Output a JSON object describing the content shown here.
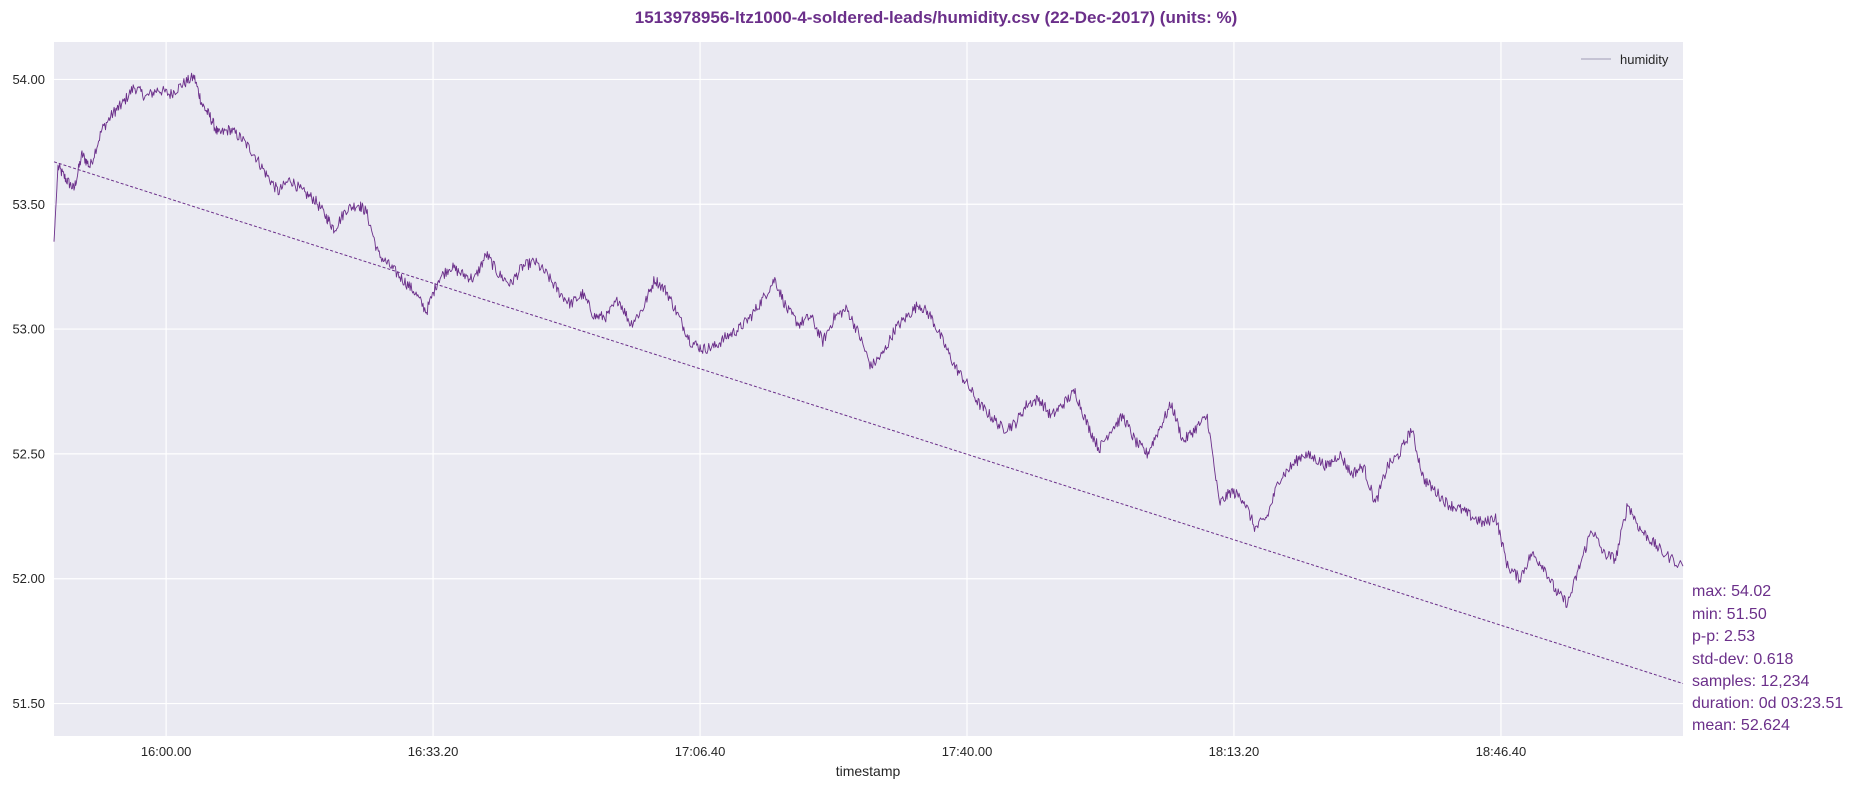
{
  "chart_data": {
    "type": "line",
    "title": "1513978956-ltz1000-4-soldered-leads/humidity.csv (22-Dec-2017) (units: %)",
    "xlabel": "timestamp",
    "ylabel": "",
    "x_start": "15:46:00",
    "x_end": "19:09:23",
    "x_ticks": [
      "16:00.00",
      "16:33.20",
      "17:06.40",
      "17:40.00",
      "18:13.20",
      "18:46.40"
    ],
    "x_tick_minutes": [
      14,
      47.33,
      80.67,
      114,
      147.33,
      180.67
    ],
    "x_range_minutes": [
      0,
      203.4
    ],
    "ylim": [
      51.37,
      54.15
    ],
    "y_ticks": [
      51.5,
      52.0,
      52.5,
      53.0,
      53.5,
      54.0
    ],
    "y_tick_labels": [
      "51.50",
      "52.00",
      "52.50",
      "53.00",
      "53.50",
      "54.00"
    ],
    "grid": true,
    "legend": {
      "position": "top-right",
      "entries": [
        "humidity"
      ]
    },
    "series": [
      {
        "name": "humidity",
        "color": "#6b2f8a",
        "points": [
          [
            0,
            53.35
          ],
          [
            0.5,
            53.65
          ],
          [
            1.5,
            53.6
          ],
          [
            2.5,
            53.56
          ],
          [
            3.5,
            53.7
          ],
          [
            4.5,
            53.65
          ],
          [
            6,
            53.8
          ],
          [
            7.5,
            53.87
          ],
          [
            8.5,
            53.9
          ],
          [
            10,
            53.97
          ],
          [
            11.5,
            53.93
          ],
          [
            13,
            53.96
          ],
          [
            14.5,
            53.94
          ],
          [
            16,
            53.98
          ],
          [
            17.5,
            54.01
          ],
          [
            18.5,
            53.9
          ],
          [
            19.5,
            53.85
          ],
          [
            20.5,
            53.78
          ],
          [
            22,
            53.8
          ],
          [
            23.5,
            53.76
          ],
          [
            25,
            53.7
          ],
          [
            26.5,
            53.62
          ],
          [
            28,
            53.55
          ],
          [
            29.5,
            53.6
          ],
          [
            31,
            53.55
          ],
          [
            32.5,
            53.52
          ],
          [
            34,
            53.45
          ],
          [
            35,
            53.4
          ],
          [
            36.5,
            53.48
          ],
          [
            38,
            53.5
          ],
          [
            39,
            53.47
          ],
          [
            40.5,
            53.3
          ],
          [
            42,
            53.25
          ],
          [
            43.5,
            53.2
          ],
          [
            45,
            53.15
          ],
          [
            46.5,
            53.07
          ],
          [
            48,
            53.2
          ],
          [
            49.5,
            53.25
          ],
          [
            51,
            53.22
          ],
          [
            52.5,
            53.2
          ],
          [
            54,
            53.3
          ],
          [
            55.5,
            53.22
          ],
          [
            57,
            53.18
          ],
          [
            58.5,
            53.25
          ],
          [
            60,
            53.27
          ],
          [
            61.5,
            53.22
          ],
          [
            63,
            53.15
          ],
          [
            64.5,
            53.1
          ],
          [
            66,
            53.14
          ],
          [
            67.5,
            53.05
          ],
          [
            69,
            53.05
          ],
          [
            70.5,
            53.12
          ],
          [
            72,
            53.02
          ],
          [
            73.5,
            53.08
          ],
          [
            75,
            53.2
          ],
          [
            76.5,
            53.15
          ],
          [
            78,
            53.05
          ],
          [
            79.5,
            52.95
          ],
          [
            81,
            52.92
          ],
          [
            82.5,
            52.93
          ],
          [
            84,
            52.97
          ],
          [
            85.5,
            53.0
          ],
          [
            87,
            53.05
          ],
          [
            88.5,
            53.12
          ],
          [
            90,
            53.2
          ],
          [
            91.5,
            53.08
          ],
          [
            93,
            53.02
          ],
          [
            94.5,
            53.05
          ],
          [
            96,
            52.95
          ],
          [
            97.5,
            53.05
          ],
          [
            99,
            53.08
          ],
          [
            100.5,
            52.98
          ],
          [
            102,
            52.85
          ],
          [
            103.5,
            52.9
          ],
          [
            105,
            53.0
          ],
          [
            106.5,
            53.05
          ],
          [
            108,
            53.1
          ],
          [
            109.5,
            53.05
          ],
          [
            111,
            52.95
          ],
          [
            112.5,
            52.85
          ],
          [
            114,
            52.78
          ],
          [
            115.5,
            52.7
          ],
          [
            117,
            52.65
          ],
          [
            118.5,
            52.6
          ],
          [
            120,
            52.62
          ],
          [
            121.5,
            52.7
          ],
          [
            123,
            52.72
          ],
          [
            124.5,
            52.65
          ],
          [
            126,
            52.7
          ],
          [
            127.5,
            52.75
          ],
          [
            129,
            52.62
          ],
          [
            130.5,
            52.52
          ],
          [
            132,
            52.6
          ],
          [
            133.5,
            52.65
          ],
          [
            135,
            52.55
          ],
          [
            136.5,
            52.5
          ],
          [
            138,
            52.6
          ],
          [
            139.5,
            52.7
          ],
          [
            141,
            52.55
          ],
          [
            142.5,
            52.6
          ],
          [
            144,
            52.65
          ],
          [
            145.5,
            52.3
          ],
          [
            147,
            52.35
          ],
          [
            148.5,
            52.32
          ],
          [
            150,
            52.2
          ],
          [
            151.5,
            52.25
          ],
          [
            153,
            52.4
          ],
          [
            154.5,
            52.45
          ],
          [
            156,
            52.5
          ],
          [
            157.5,
            52.48
          ],
          [
            159,
            52.45
          ],
          [
            160.5,
            52.5
          ],
          [
            162,
            52.42
          ],
          [
            163.5,
            52.45
          ],
          [
            165,
            52.3
          ],
          [
            166.5,
            52.45
          ],
          [
            168,
            52.5
          ],
          [
            169.5,
            52.6
          ],
          [
            171,
            52.4
          ],
          [
            172.5,
            52.35
          ],
          [
            174,
            52.3
          ],
          [
            175.5,
            52.28
          ],
          [
            177,
            52.25
          ],
          [
            178.5,
            52.22
          ],
          [
            180,
            52.25
          ],
          [
            181.5,
            52.05
          ],
          [
            183,
            52.0
          ],
          [
            184.5,
            52.1
          ],
          [
            186,
            52.05
          ],
          [
            187.5,
            51.95
          ],
          [
            189,
            51.9
          ],
          [
            190.5,
            52.05
          ],
          [
            192,
            52.2
          ],
          [
            193.5,
            52.1
          ],
          [
            195,
            52.08
          ],
          [
            196.5,
            52.3
          ],
          [
            198,
            52.2
          ],
          [
            199.5,
            52.15
          ],
          [
            201,
            52.1
          ],
          [
            203.4,
            52.05
          ]
        ]
      }
    ],
    "trend": {
      "start_value": 53.67,
      "end_value": 51.58,
      "color": "#6b2f8a",
      "style": "dashed"
    },
    "stats": {
      "max": "max: 54.02",
      "min": "min: 51.50",
      "pp": "p-p: 2.53",
      "std": "std-dev: 0.618",
      "samples": "samples: 12,234",
      "duration": "duration: 0d 03:23.51",
      "mean": "mean: 52.624"
    }
  }
}
